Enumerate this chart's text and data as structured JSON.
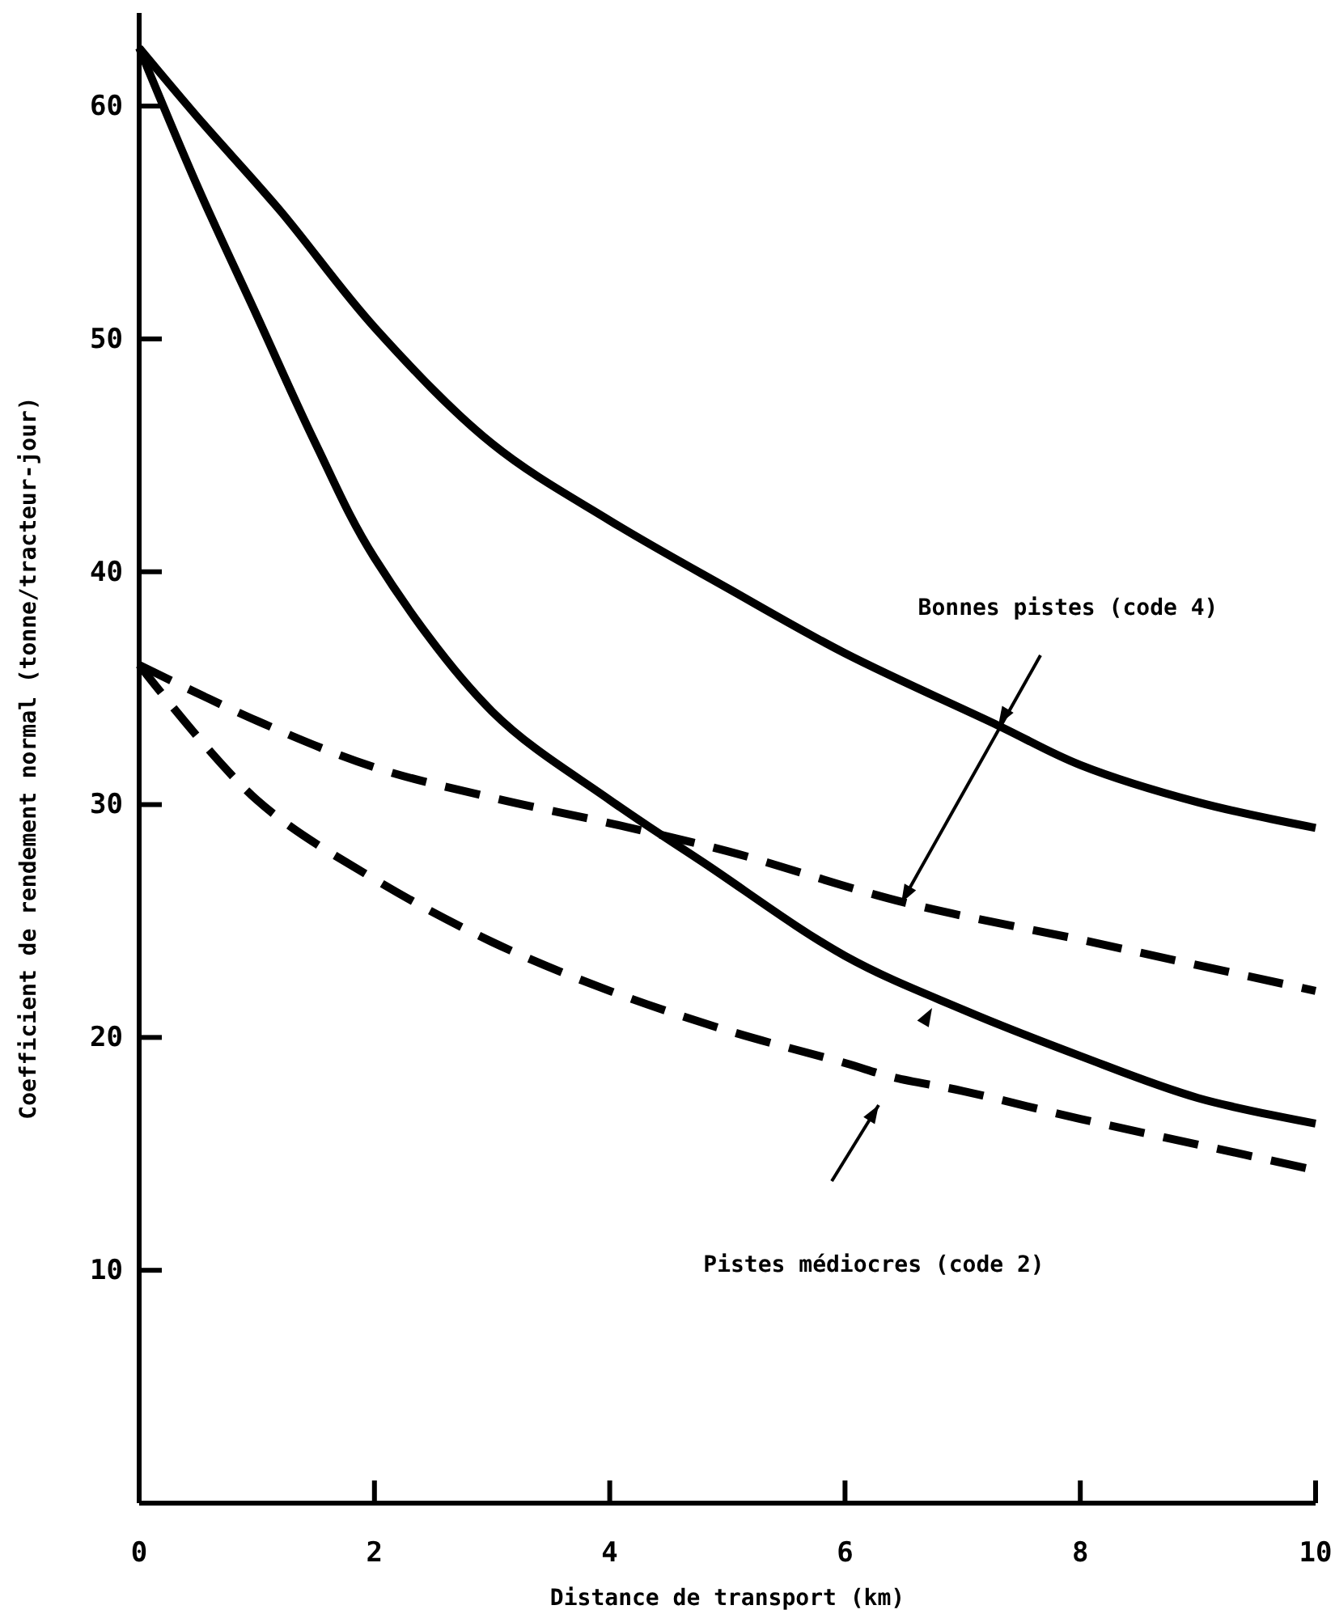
{
  "chart_data": {
    "type": "line",
    "xlabel": "Distance de transport (km)",
    "ylabel": "Coefficient de rendement normal (tonne/tracteur-jour)",
    "xlim": [
      0,
      10
    ],
    "xticks": [
      0,
      2,
      4,
      6,
      8,
      10
    ],
    "ylim": [
      0,
      64
    ],
    "yticks": [
      10,
      20,
      30,
      40,
      50,
      60
    ],
    "grid": false,
    "marker": "none",
    "series": [
      {
        "color": "#000000",
        "line_style": "solid",
        "x": [
          0,
          0.5,
          1.2,
          2,
          3,
          4,
          5,
          6,
          7.3,
          8,
          9,
          10
        ],
        "values": [
          62.5,
          59.5,
          55.5,
          50.5,
          45.5,
          42.2,
          39.3,
          36.5,
          33.4,
          31.7,
          30.1,
          29.0
        ]
      },
      {
        "color": "#000000",
        "line_style": "solid",
        "x": [
          0,
          0.5,
          1,
          1.5,
          2,
          3,
          4,
          4.8,
          6,
          7,
          8,
          9,
          10
        ],
        "values": [
          62.5,
          56.5,
          51,
          45.5,
          40.6,
          34,
          30.2,
          27.5,
          23.5,
          21.2,
          19.2,
          17.4,
          16.3
        ]
      },
      {
        "color": "#000000",
        "line_style": "dashed",
        "x": [
          0,
          1,
          2,
          3,
          4,
          5,
          6.5,
          8,
          9,
          10
        ],
        "values": [
          36,
          33.6,
          31.6,
          30.3,
          29.2,
          28,
          25.8,
          24.2,
          23.1,
          22
        ]
      },
      {
        "color": "#000000",
        "line_style": "dashed",
        "x": [
          0,
          1,
          2,
          3,
          4,
          5,
          6,
          6.4,
          7,
          8,
          9,
          10
        ],
        "values": [
          36,
          30.2,
          26.8,
          24.1,
          22,
          20.3,
          18.9,
          18.3,
          17.7,
          16.5,
          15.4,
          14.3
        ]
      }
    ],
    "annotations": [
      "Bonnes pistes (code 4)",
      "Pistes médiocres (code 2)"
    ]
  }
}
